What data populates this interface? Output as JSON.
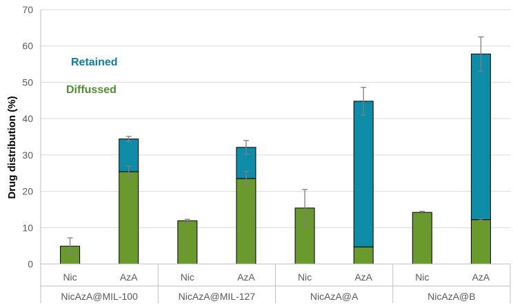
{
  "chart_data": {
    "type": "bar",
    "stacked": true,
    "title": "",
    "xlabel": "",
    "ylabel": "Drug distribution (%)",
    "ylim": [
      0,
      70
    ],
    "yticks": [
      0,
      10,
      20,
      30,
      40,
      50,
      60,
      70
    ],
    "grid": "horizontal",
    "groups": [
      "NicAzA@MIL-100",
      "NicAzA@MIL-127",
      "NicAzA@A",
      "NicAzA@B"
    ],
    "categories": [
      "Nic",
      "AzA",
      "Nic",
      "AzA",
      "Nic",
      "AzA",
      "Nic",
      "AzA"
    ],
    "series": [
      {
        "name": "Diffussed",
        "color": "#6a9a2e",
        "values": [
          4.9,
          25.4,
          11.9,
          23.5,
          15.4,
          4.7,
          14.2,
          12.2
        ],
        "errors": [
          2.3,
          1.5,
          0.4,
          2.0,
          0,
          0,
          0.3,
          0.2
        ]
      },
      {
        "name": "Retained",
        "color": "#0e8ba6",
        "values": [
          0,
          9.0,
          0,
          8.6,
          0,
          40.1,
          0,
          45.6
        ],
        "errors": [
          0,
          0.7,
          0,
          1.9,
          5.1,
          3.8,
          0,
          4.7
        ]
      }
    ],
    "legend": {
      "placement": "inside-top-left",
      "entries": [
        {
          "label": "Retained",
          "color": "#0e7ea0"
        },
        {
          "label": "Diffussed",
          "color": "#4f8f2e"
        }
      ]
    }
  }
}
